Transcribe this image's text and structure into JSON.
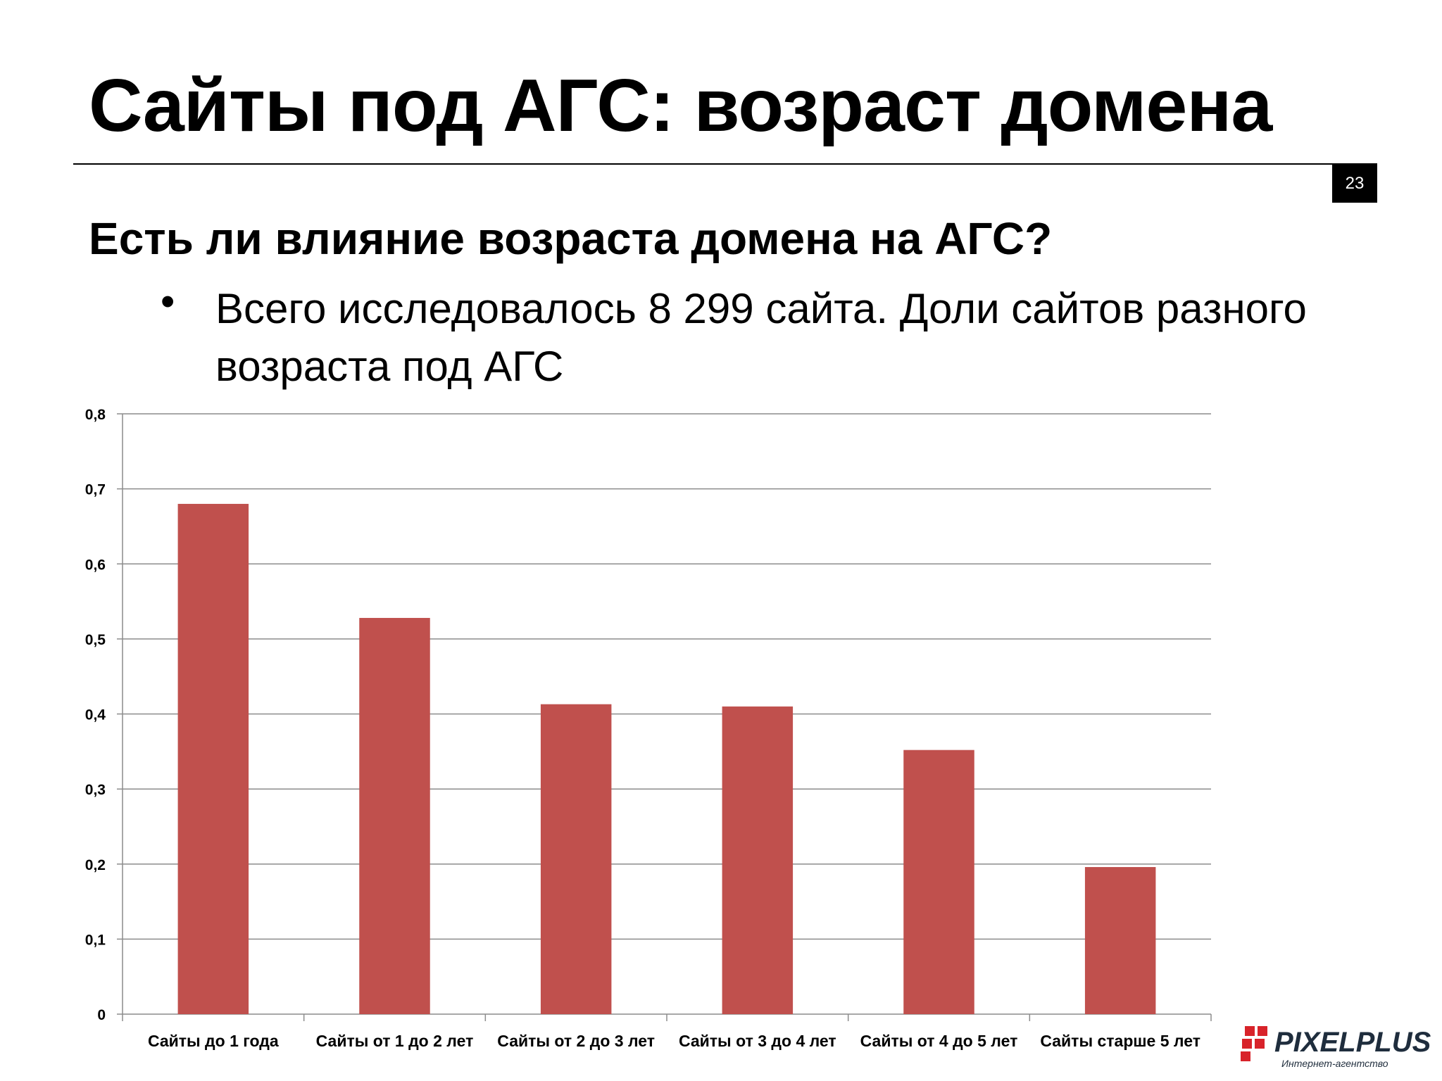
{
  "slide": {
    "title": "Сайты под АГС: возраст домена",
    "page_number": "23",
    "subtitle": "Есть ли влияние возраста домена на АГС?",
    "bullet": "Всего исследовалось 8 299 сайта. Доли сайтов разного возраста под АГС"
  },
  "logo": {
    "name": "PIXELPLUS",
    "tagline": "Интернет-агентство",
    "accent_color": "#d8232a",
    "dark_color": "#1f2d3d"
  },
  "chart_data": {
    "type": "bar",
    "categories": [
      "Сайты до 1 года",
      "Сайты от 1 до 2 лет",
      "Сайты от 2 до 3 лет",
      "Сайты от 3 до 4 лет",
      "Сайты от 4 до 5 лет",
      "Сайты старше 5 лет"
    ],
    "values": [
      0.68,
      0.528,
      0.413,
      0.41,
      0.352,
      0.196
    ],
    "title": "",
    "xlabel": "",
    "ylabel": "",
    "ylim": [
      0,
      0.8
    ],
    "yticks": [
      "0",
      "0,1",
      "0,2",
      "0,3",
      "0,4",
      "0,5",
      "0,6",
      "0,7",
      "0,8"
    ],
    "grid": true,
    "legend": "none",
    "bar_color": "#c0504d"
  }
}
